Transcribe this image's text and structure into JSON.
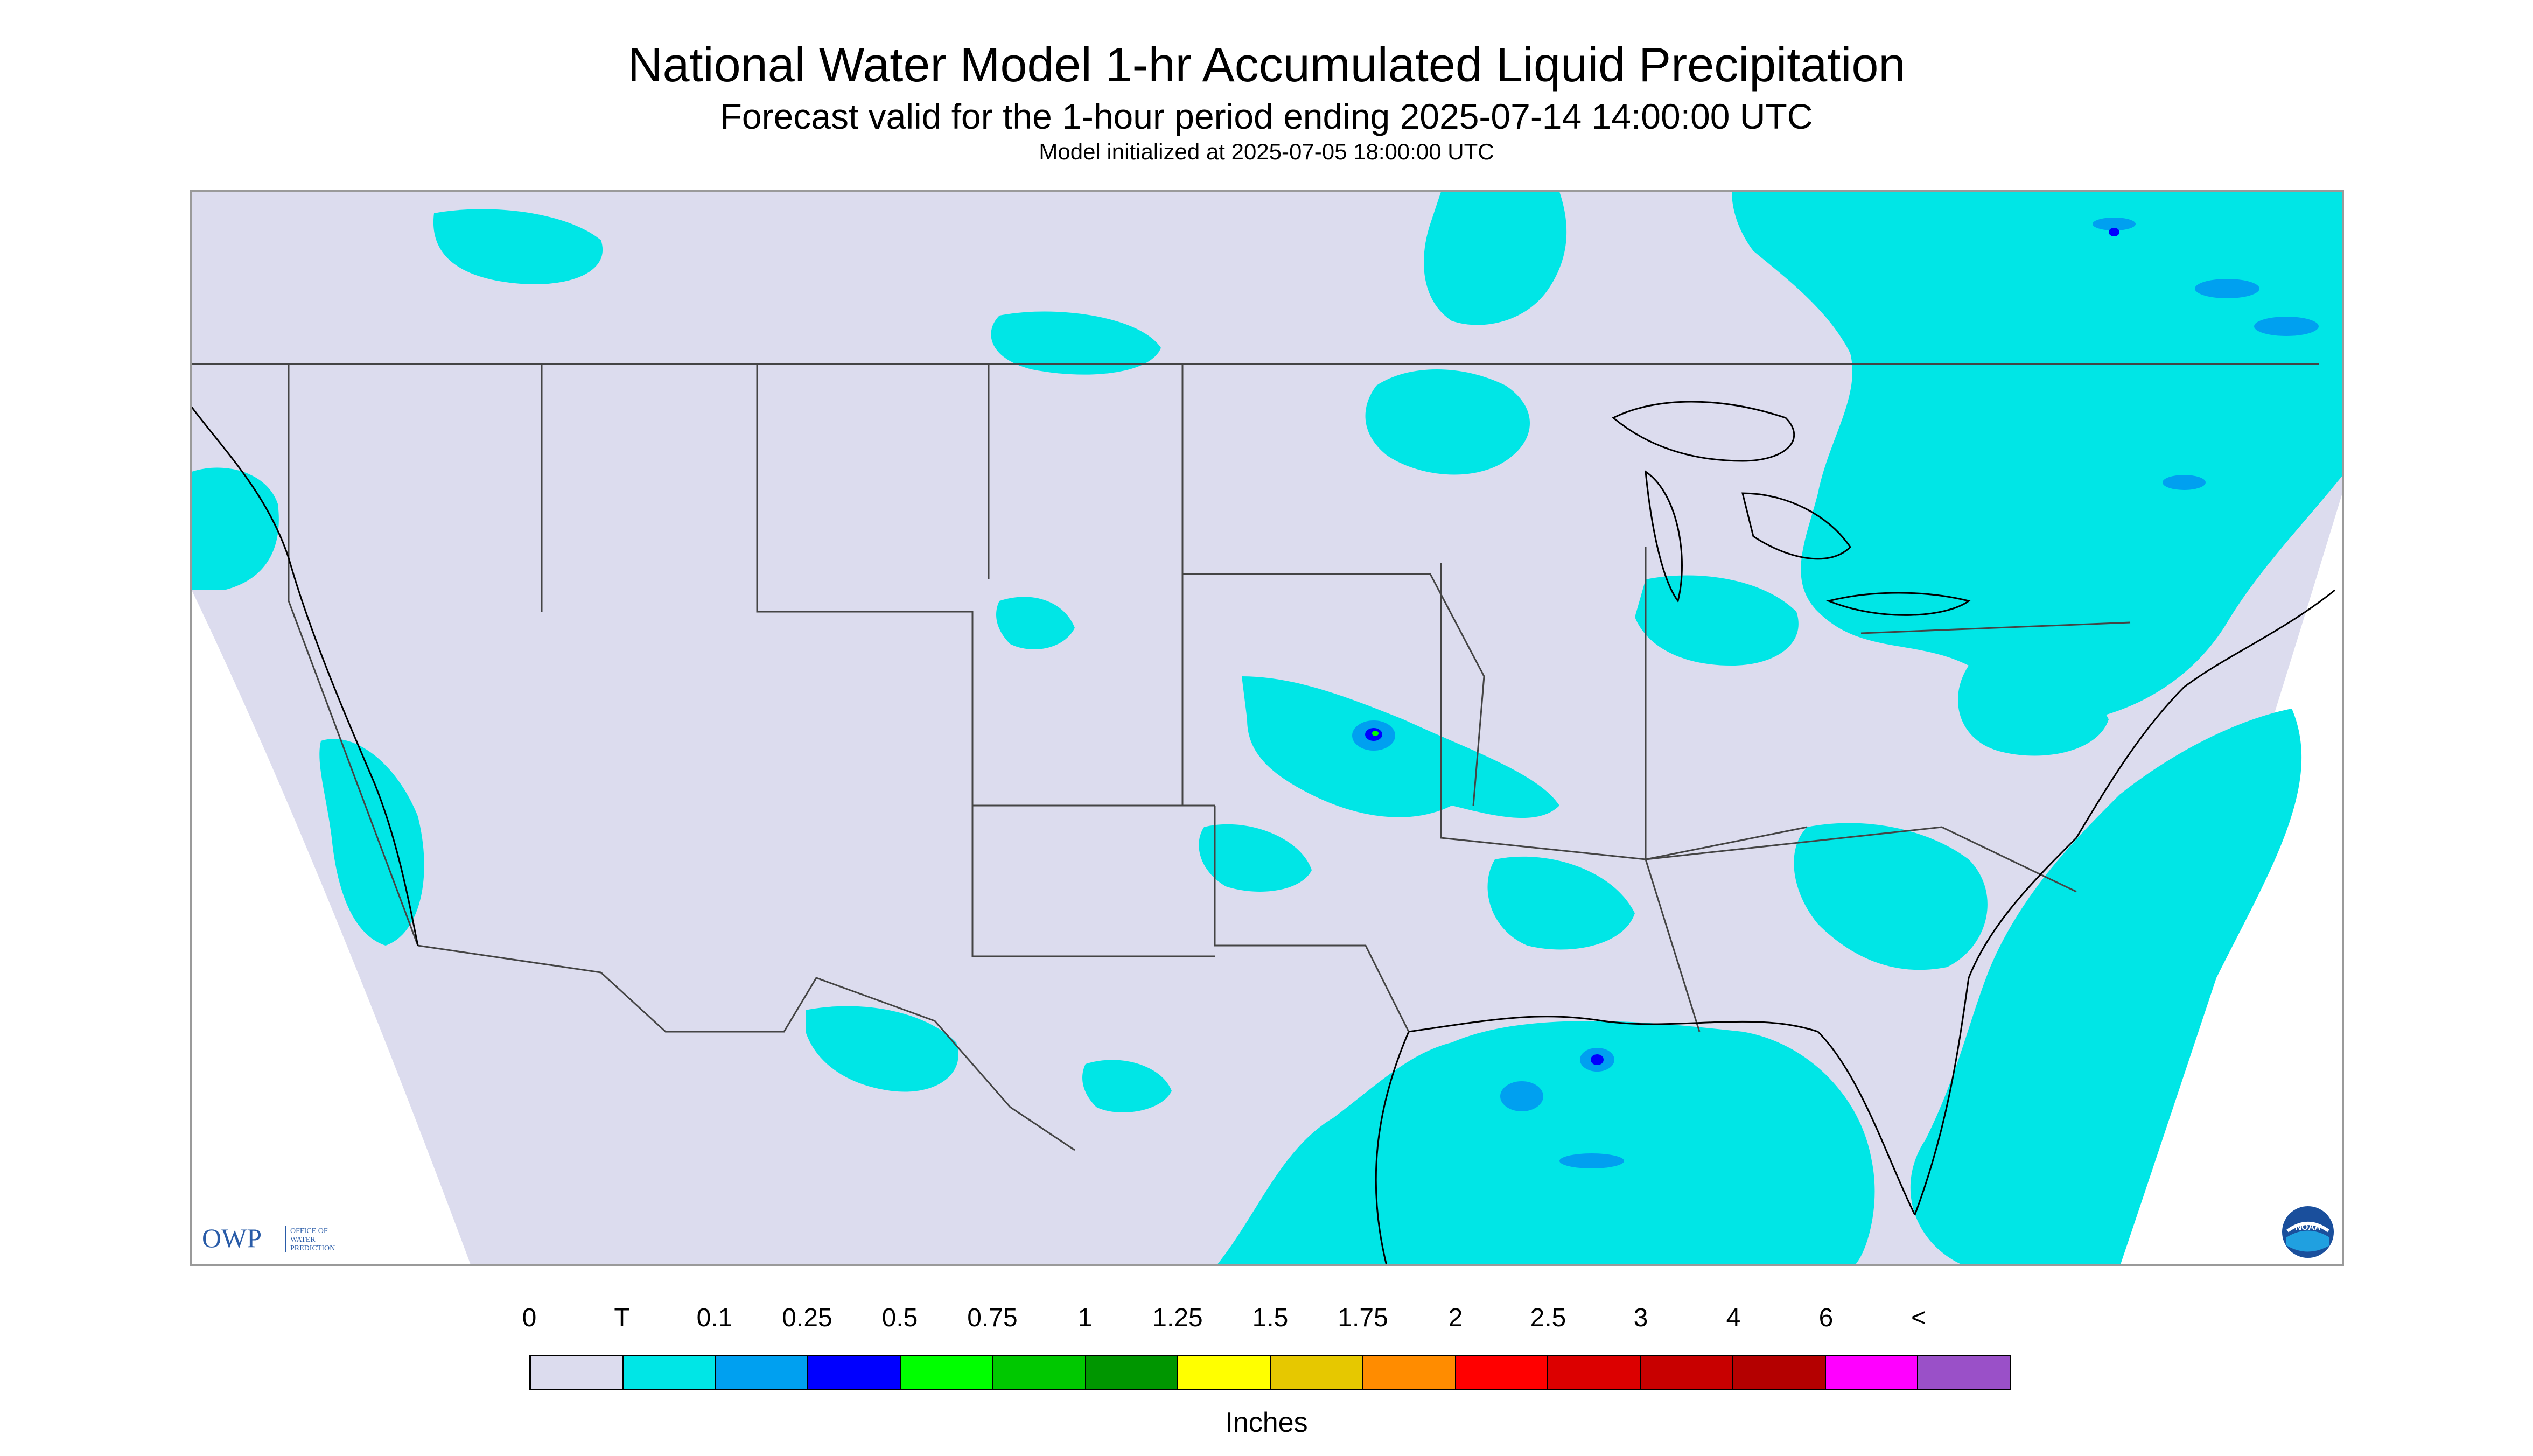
{
  "header": {
    "title": "National Water Model 1-hr Accumulated Liquid Precipitation",
    "subtitle": "Forecast valid for the 1-hour period ending 2025-07-14 14:00:00 UTC",
    "init_text": "Model initialized at 2025-07-05 18:00:00 UTC"
  },
  "map": {
    "region": "Continental United States and surroundings",
    "projection_shape": "conic (Lambert conformal) domain, wider at top",
    "outside_domain_color": "#ffffff",
    "no_precip_color": "#dcdcee",
    "precip_trace_color": "#00e6e6",
    "state_line_color": "#444444",
    "coast_line_color": "#000000"
  },
  "logos": {
    "owp": {
      "main": "OWP",
      "line1": "OFFICE OF",
      "line2": "WATER",
      "line3": "PREDICTION"
    },
    "noaa": {
      "label": "NOAA"
    }
  },
  "legend": {
    "ticks": [
      "0",
      "T",
      "0.1",
      "0.25",
      "0.5",
      "0.75",
      "1",
      "1.25",
      "1.5",
      "1.75",
      "2",
      "2.5",
      "3",
      "4",
      "6",
      "<"
    ],
    "colors": [
      "#dcdcee",
      "#00e6e6",
      "#00a0f0",
      "#0000ff",
      "#00ff00",
      "#00c800",
      "#009600",
      "#ffff00",
      "#e6c800",
      "#ff8c00",
      "#ff0000",
      "#dc0000",
      "#c80000",
      "#b40000",
      "#ff00ff",
      "#9a50c8"
    ],
    "units": "Inches"
  }
}
